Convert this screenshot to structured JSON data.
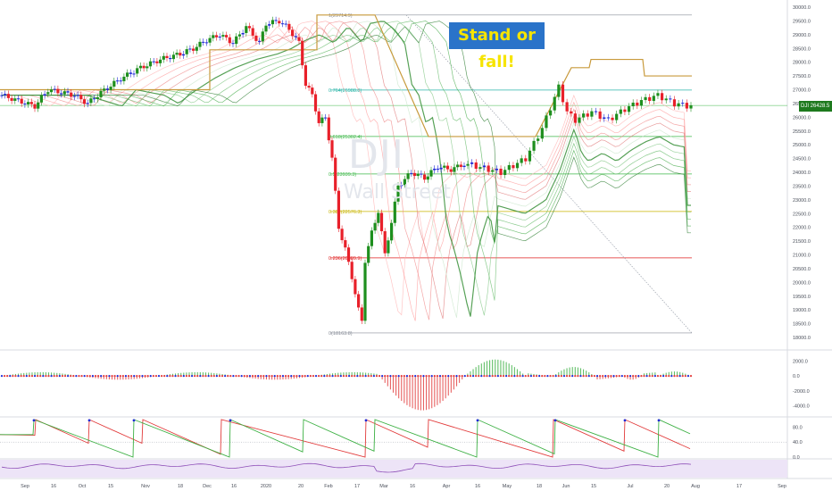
{
  "title": "Stand or fall!",
  "watermark": {
    "symbol": "DJI",
    "name": "Wall Street"
  },
  "price_tag": {
    "symbol": "DJI",
    "value": "26428.5"
  },
  "colors": {
    "up": "#1e8f1e",
    "down": "#e8202a",
    "neutral": "#1f2ad6",
    "fib": "#c89a3c",
    "osc_up": "#3cb043",
    "osc_down": "#e23b3b"
  },
  "chart_data": [
    {
      "type": "line",
      "title": "",
      "ylim": [
        18000,
        30000
      ],
      "yticks": [
        "30000.0",
        "29500.0",
        "29000.0",
        "28500.0",
        "28000.0",
        "27500.0",
        "27000.0",
        "26500.0",
        "26000.0",
        "25500.0",
        "25000.0",
        "24500.0",
        "24000.0",
        "23500.0",
        "23000.0",
        "22500.0",
        "22000.0",
        "21500.0",
        "21000.0",
        "20500.0",
        "20000.0",
        "19500.0",
        "19000.0",
        "18500.0",
        "18000.0"
      ],
      "xticks": [
        "Sep",
        "16",
        "Oct",
        "15",
        "Nov",
        "18",
        "Dec",
        "16",
        "2020",
        "20",
        "Feb",
        "17",
        "Mar",
        "16",
        "Apr",
        "16",
        "May",
        "18",
        "Jun",
        "15",
        "Jul",
        "20",
        "Aug",
        "17",
        "Sep"
      ],
      "fib_levels": [
        {
          "label": "1(29714.9)",
          "value": 29714.9
        },
        {
          "label": "0.764(26988.8)",
          "value": 26988.8
        },
        {
          "label": "0.618(25302.4)",
          "value": 25302.4
        },
        {
          "label": "0.5(23939.3)",
          "value": 23939.3
        },
        {
          "label": "0.382(22576.3)",
          "value": 22576.3
        },
        {
          "label": "0.236(20889.9)",
          "value": 20889.9
        },
        {
          "label": "0(18163.8)",
          "value": 18163.8
        }
      ],
      "last_price": 26428.5
    },
    {
      "type": "bar",
      "title": "",
      "ylim": [
        -5000,
        3000
      ],
      "yticks": [
        "2000.0",
        "0.0",
        "-2000.0",
        "-4000.0"
      ]
    },
    {
      "type": "line",
      "title": "",
      "ylim": [
        0,
        100
      ],
      "yticks": [
        "80.0",
        "40.0",
        "0.0"
      ]
    }
  ]
}
